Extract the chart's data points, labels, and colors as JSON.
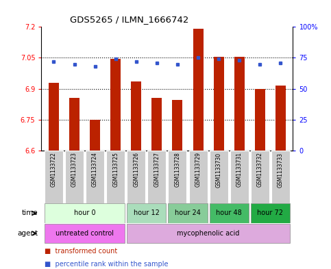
{
  "title": "GDS5265 / ILMN_1666742",
  "samples": [
    "GSM1133722",
    "GSM1133723",
    "GSM1133724",
    "GSM1133725",
    "GSM1133726",
    "GSM1133727",
    "GSM1133728",
    "GSM1133729",
    "GSM1133730",
    "GSM1133731",
    "GSM1133732",
    "GSM1133733"
  ],
  "bar_values": [
    6.93,
    6.855,
    6.75,
    7.045,
    6.935,
    6.855,
    6.845,
    7.19,
    7.055,
    7.055,
    6.9,
    6.915
  ],
  "percentile_values": [
    72,
    70,
    68,
    74,
    72,
    71,
    70,
    75,
    74,
    73,
    70,
    71
  ],
  "bar_bottom": 6.6,
  "ylim_left": [
    6.6,
    7.2
  ],
  "ylim_right": [
    0,
    100
  ],
  "yticks_left": [
    6.6,
    6.75,
    6.9,
    7.05,
    7.2
  ],
  "ytick_labels_left": [
    "6.6",
    "6.75",
    "6.9",
    "7.05",
    "7.2"
  ],
  "yticks_right": [
    0,
    25,
    50,
    75,
    100
  ],
  "ytick_labels_right": [
    "0",
    "25",
    "50",
    "75",
    "100%"
  ],
  "hlines": [
    6.75,
    6.9,
    7.05
  ],
  "bar_color": "#BB2200",
  "percentile_color": "#3355CC",
  "time_groups": [
    {
      "label": "hour 0",
      "start": 0,
      "end": 3,
      "color": "#DDFFDD"
    },
    {
      "label": "hour 12",
      "start": 4,
      "end": 5,
      "color": "#AADDBB"
    },
    {
      "label": "hour 24",
      "start": 6,
      "end": 7,
      "color": "#88CC99"
    },
    {
      "label": "hour 48",
      "start": 8,
      "end": 9,
      "color": "#44BB66"
    },
    {
      "label": "hour 72",
      "start": 10,
      "end": 11,
      "color": "#22AA44"
    }
  ],
  "agent_groups": [
    {
      "label": "untreated control",
      "start": 0,
      "end": 3,
      "color": "#EE77EE"
    },
    {
      "label": "mycophenolic acid",
      "start": 4,
      "end": 11,
      "color": "#DDAADD"
    }
  ],
  "legend_bar_label": "transformed count",
  "legend_perc_label": "percentile rank within the sample",
  "time_label": "time",
  "agent_label": "agent",
  "sample_bg_color": "#CCCCCC",
  "fig_bg_color": "#FFFFFF",
  "bar_width": 0.5
}
